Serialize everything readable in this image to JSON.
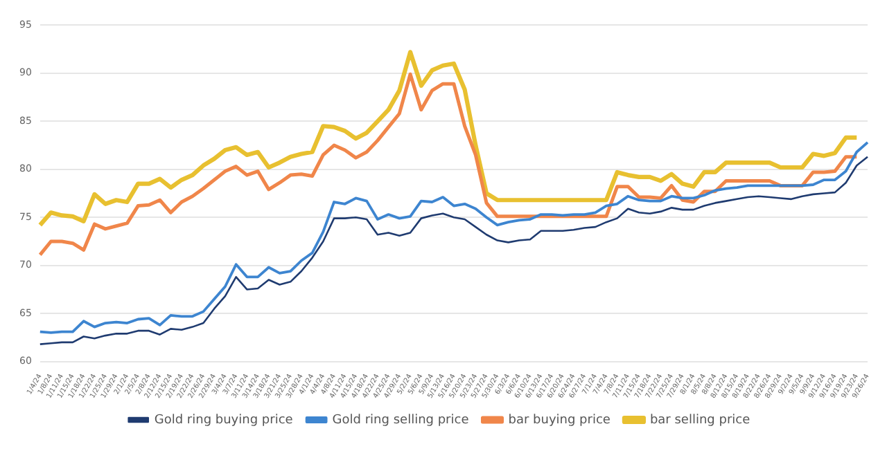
{
  "chart_data": {
    "type": "line",
    "categories": [
      "1/4/24",
      "1/8/24",
      "1/11/24",
      "1/15/24",
      "1/18/24",
      "1/22/24",
      "1/25/24",
      "1/29/24",
      "2/1/24",
      "2/5/24",
      "2/8/24",
      "2/12/24",
      "2/15/24",
      "2/19/24",
      "2/22/24",
      "2/26/24",
      "2/29/24",
      "3/4/24",
      "3/7/24",
      "3/11/24",
      "3/14/24",
      "3/18/24",
      "3/21/24",
      "3/25/24",
      "3/28/24",
      "4/1/24",
      "4/4/24",
      "4/8/24",
      "4/11/24",
      "4/15/24",
      "4/18/24",
      "4/22/24",
      "4/25/24",
      "4/29/24",
      "5/2/24",
      "5/6/24",
      "5/9/24",
      "5/13/24",
      "5/16/24",
      "5/20/24",
      "5/23/24",
      "5/27/24",
      "5/30/24",
      "6/3/24",
      "6/6/24",
      "6/10/24",
      "6/13/24",
      "6/17/24",
      "6/20/24",
      "6/24/24",
      "6/27/24",
      "7/1/24",
      "7/4/24",
      "7/8/24",
      "7/11/24",
      "7/15/24",
      "7/18/24",
      "7/22/24",
      "7/25/24",
      "7/29/24",
      "8/1/24",
      "8/5/24",
      "8/8/24",
      "8/12/24",
      "8/15/24",
      "8/19/24",
      "8/22/24",
      "8/26/24",
      "8/29/24",
      "9/2/24",
      "9/5/24",
      "9/9/24",
      "9/12/24",
      "9/16/24",
      "9/19/24",
      "9/23/24",
      "9/26/24"
    ],
    "series": [
      {
        "name": "Gold ring buying price",
        "color": "#1f3b70",
        "values": [
          61.8,
          61.9,
          62.0,
          62.0,
          62.6,
          62.4,
          62.7,
          62.9,
          62.9,
          63.2,
          63.2,
          62.8,
          63.4,
          63.3,
          63.6,
          64.0,
          65.5,
          66.8,
          68.8,
          67.5,
          67.6,
          68.5,
          68.0,
          68.3,
          69.4,
          70.8,
          72.5,
          74.9,
          74.9,
          75.0,
          74.8,
          73.2,
          73.4,
          73.1,
          73.4,
          74.9,
          75.2,
          75.4,
          75.0,
          74.8,
          74.0,
          73.2,
          72.6,
          72.4,
          72.6,
          72.7,
          73.6,
          73.6,
          73.6,
          73.7,
          73.9,
          74.0,
          74.5,
          74.9,
          75.9,
          75.5,
          75.4,
          75.6,
          76.0,
          75.8,
          75.8,
          76.2,
          76.5,
          76.7,
          76.9,
          77.1,
          77.2,
          77.1,
          77.0,
          76.9,
          77.2,
          77.4,
          77.5,
          77.6,
          78.6,
          80.4,
          81.3
        ]
      },
      {
        "name": "Gold ring selling price",
        "color": "#3d85d0",
        "values": [
          63.1,
          63.0,
          63.1,
          63.1,
          64.2,
          63.6,
          64.0,
          64.1,
          64.0,
          64.4,
          64.5,
          63.8,
          64.8,
          64.7,
          64.7,
          65.2,
          66.5,
          67.8,
          70.1,
          68.8,
          68.8,
          69.8,
          69.2,
          69.4,
          70.5,
          71.3,
          73.5,
          76.6,
          76.4,
          77.0,
          76.7,
          74.8,
          75.3,
          74.9,
          75.1,
          76.7,
          76.6,
          77.1,
          76.2,
          76.4,
          75.9,
          75.0,
          74.2,
          74.5,
          74.7,
          74.8,
          75.3,
          75.3,
          75.2,
          75.3,
          75.3,
          75.5,
          76.2,
          76.4,
          77.2,
          76.8,
          76.7,
          76.7,
          77.2,
          77.0,
          77.0,
          77.3,
          77.8,
          78.0,
          78.1,
          78.3,
          78.3,
          78.3,
          78.3,
          78.3,
          78.3,
          78.4,
          78.9,
          78.9,
          79.8,
          81.8,
          82.8
        ]
      },
      {
        "name": "bar buying price",
        "color": "#f0864a",
        "values": [
          71.1,
          72.5,
          72.5,
          72.3,
          71.6,
          74.3,
          73.8,
          74.1,
          74.4,
          76.2,
          76.3,
          76.8,
          75.5,
          76.6,
          77.2,
          78.0,
          78.9,
          79.8,
          80.3,
          79.4,
          79.8,
          77.9,
          78.6,
          79.4,
          79.5,
          79.3,
          81.5,
          82.5,
          82.0,
          81.2,
          81.8,
          83.0,
          84.4,
          85.8,
          89.9,
          86.2,
          88.2,
          88.9,
          88.9,
          84.5,
          81.5,
          76.5,
          75.1,
          75.1,
          75.1,
          75.1,
          75.1,
          75.1,
          75.1,
          75.1,
          75.1,
          75.1,
          75.1,
          78.2,
          78.2,
          77.1,
          77.1,
          77.0,
          78.3,
          76.8,
          76.6,
          77.7,
          77.7,
          78.8,
          78.8,
          78.8,
          78.8,
          78.8,
          78.3,
          78.3,
          78.3,
          79.7,
          79.7,
          79.8,
          81.3,
          81.3,
          null
        ]
      },
      {
        "name": "bar selling price",
        "color": "#e8c030",
        "values": [
          74.2,
          75.5,
          75.2,
          75.1,
          74.6,
          77.4,
          76.4,
          76.8,
          76.6,
          78.5,
          78.5,
          79.0,
          78.1,
          78.9,
          79.4,
          80.4,
          81.1,
          82.0,
          82.3,
          81.5,
          81.8,
          80.2,
          80.7,
          81.3,
          81.6,
          81.8,
          84.5,
          84.4,
          84.0,
          83.2,
          83.8,
          85.0,
          86.2,
          88.2,
          92.2,
          88.7,
          90.3,
          90.8,
          91.0,
          88.3,
          82.5,
          77.5,
          76.8,
          76.8,
          76.8,
          76.8,
          76.8,
          76.8,
          76.8,
          76.8,
          76.8,
          76.8,
          76.8,
          79.7,
          79.4,
          79.2,
          79.2,
          78.8,
          79.5,
          78.5,
          78.2,
          79.7,
          79.7,
          80.7,
          80.7,
          80.7,
          80.7,
          80.7,
          80.2,
          80.2,
          80.2,
          81.6,
          81.4,
          81.7,
          83.3,
          83.3,
          null
        ]
      }
    ],
    "ylim": [
      60,
      95
    ],
    "yticks": [
      60,
      65,
      70,
      75,
      80,
      85,
      90,
      95
    ],
    "grid": "y",
    "legend": "bottom",
    "marker": "none",
    "line_style": "solid"
  }
}
